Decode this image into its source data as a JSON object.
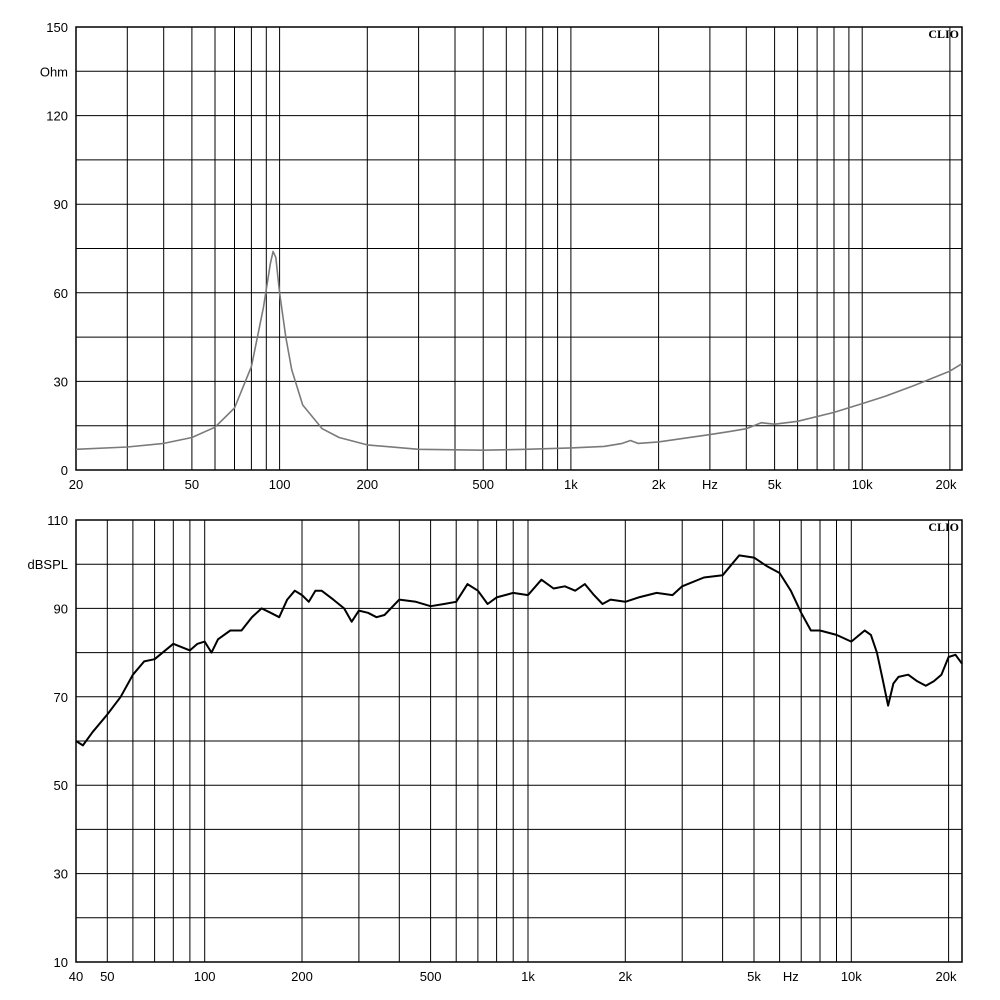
{
  "chart_data": [
    {
      "type": "line",
      "title": "",
      "brand": "CLIO",
      "ylabel": "Ohm",
      "xunit": "Hz",
      "xscale": "log",
      "xlim": [
        20,
        22000
      ],
      "ylim": [
        0,
        150
      ],
      "grid": true,
      "y_ticks": [
        "0",
        "30",
        "60",
        "90",
        "120",
        "150"
      ],
      "x_ticks": [
        {
          "v": 20,
          "label": "20"
        },
        {
          "v": 50,
          "label": "50"
        },
        {
          "v": 100,
          "label": "100"
        },
        {
          "v": 200,
          "label": "200"
        },
        {
          "v": 500,
          "label": "500"
        },
        {
          "v": 1000,
          "label": "1k"
        },
        {
          "v": 2000,
          "label": "2k"
        },
        {
          "v": 5000,
          "label": "5k"
        },
        {
          "v": 10000,
          "label": "10k"
        },
        {
          "v": 20000,
          "label": "20k"
        }
      ],
      "unit_label_at": 3000,
      "line_color": "#7a7a7a",
      "series": [
        {
          "name": "",
          "points": [
            [
              20,
              7
            ],
            [
              30,
              7.8
            ],
            [
              40,
              9
            ],
            [
              50,
              11
            ],
            [
              60,
              14.5
            ],
            [
              70,
              21
            ],
            [
              80,
              35
            ],
            [
              88,
              55
            ],
            [
              93,
              70
            ],
            [
              95,
              74
            ],
            [
              97,
              72
            ],
            [
              100,
              60
            ],
            [
              105,
              45
            ],
            [
              110,
              34
            ],
            [
              120,
              22
            ],
            [
              140,
              14
            ],
            [
              160,
              11
            ],
            [
              200,
              8.5
            ],
            [
              300,
              7
            ],
            [
              500,
              6.7
            ],
            [
              700,
              7
            ],
            [
              1000,
              7.5
            ],
            [
              1300,
              8
            ],
            [
              1500,
              9
            ],
            [
              1600,
              10
            ],
            [
              1700,
              9
            ],
            [
              2000,
              9.5
            ],
            [
              3000,
              12
            ],
            [
              3500,
              13
            ],
            [
              4000,
              14
            ],
            [
              4500,
              16
            ],
            [
              5000,
              15.5
            ],
            [
              6000,
              16.5
            ],
            [
              8000,
              19.5
            ],
            [
              10000,
              22.5
            ],
            [
              12000,
              25
            ],
            [
              15000,
              28.5
            ],
            [
              20000,
              33.5
            ],
            [
              22000,
              36
            ]
          ]
        }
      ]
    },
    {
      "type": "line",
      "title": "",
      "brand": "CLIO",
      "ylabel": "dBSPL",
      "xunit": "Hz",
      "xscale": "log",
      "xlim": [
        40,
        22000
      ],
      "ylim": [
        10,
        110
      ],
      "grid": true,
      "y_ticks": [
        "10",
        "30",
        "50",
        "70",
        "90",
        "110"
      ],
      "x_ticks": [
        {
          "v": 40,
          "label": "40"
        },
        {
          "v": 50,
          "label": "50"
        },
        {
          "v": 100,
          "label": "100"
        },
        {
          "v": 200,
          "label": "200"
        },
        {
          "v": 500,
          "label": "500"
        },
        {
          "v": 1000,
          "label": "1k"
        },
        {
          "v": 2000,
          "label": "2k"
        },
        {
          "v": 5000,
          "label": "5k"
        },
        {
          "v": 10000,
          "label": "10k"
        },
        {
          "v": 20000,
          "label": "20k"
        }
      ],
      "unit_label_at": 6500,
      "line_color": "#000000",
      "series": [
        {
          "name": "",
          "points": [
            [
              40,
              60
            ],
            [
              42,
              59
            ],
            [
              45,
              62
            ],
            [
              50,
              66
            ],
            [
              55,
              70
            ],
            [
              60,
              75
            ],
            [
              65,
              78
            ],
            [
              70,
              78.5
            ],
            [
              80,
              82
            ],
            [
              90,
              80.5
            ],
            [
              95,
              82
            ],
            [
              100,
              82.5
            ],
            [
              105,
              80
            ],
            [
              110,
              83
            ],
            [
              120,
              85
            ],
            [
              130,
              85
            ],
            [
              140,
              88
            ],
            [
              150,
              90
            ],
            [
              160,
              89
            ],
            [
              170,
              88
            ],
            [
              180,
              92
            ],
            [
              190,
              94
            ],
            [
              200,
              93
            ],
            [
              210,
              91.5
            ],
            [
              220,
              94
            ],
            [
              230,
              94
            ],
            [
              250,
              92
            ],
            [
              270,
              90
            ],
            [
              285,
              87
            ],
            [
              300,
              89.5
            ],
            [
              320,
              89
            ],
            [
              340,
              88
            ],
            [
              360,
              88.5
            ],
            [
              400,
              92
            ],
            [
              450,
              91.5
            ],
            [
              500,
              90.5
            ],
            [
              550,
              91
            ],
            [
              600,
              91.5
            ],
            [
              650,
              95.5
            ],
            [
              700,
              94
            ],
            [
              750,
              91
            ],
            [
              800,
              92.5
            ],
            [
              900,
              93.5
            ],
            [
              1000,
              93
            ],
            [
              1100,
              96.5
            ],
            [
              1200,
              94.5
            ],
            [
              1300,
              95
            ],
            [
              1400,
              94
            ],
            [
              1500,
              95.5
            ],
            [
              1600,
              93
            ],
            [
              1700,
              91
            ],
            [
              1800,
              92
            ],
            [
              2000,
              91.5
            ],
            [
              2200,
              92.5
            ],
            [
              2500,
              93.5
            ],
            [
              2800,
              93
            ],
            [
              3000,
              95
            ],
            [
              3500,
              97
            ],
            [
              4000,
              97.5
            ],
            [
              4500,
              102
            ],
            [
              5000,
              101.5
            ],
            [
              5500,
              99.5
            ],
            [
              6000,
              98
            ],
            [
              6500,
              94
            ],
            [
              7000,
              89
            ],
            [
              7500,
              85
            ],
            [
              8000,
              85
            ],
            [
              9000,
              84
            ],
            [
              10000,
              82.5
            ],
            [
              11000,
              85
            ],
            [
              11500,
              84
            ],
            [
              12000,
              80
            ],
            [
              12500,
              74
            ],
            [
              13000,
              68
            ],
            [
              13500,
              73
            ],
            [
              14000,
              74.5
            ],
            [
              15000,
              75
            ],
            [
              16000,
              73.5
            ],
            [
              17000,
              72.5
            ],
            [
              18000,
              73.5
            ],
            [
              19000,
              75
            ],
            [
              20000,
              79
            ],
            [
              21000,
              79.5
            ],
            [
              22000,
              77.5
            ]
          ]
        }
      ]
    }
  ]
}
